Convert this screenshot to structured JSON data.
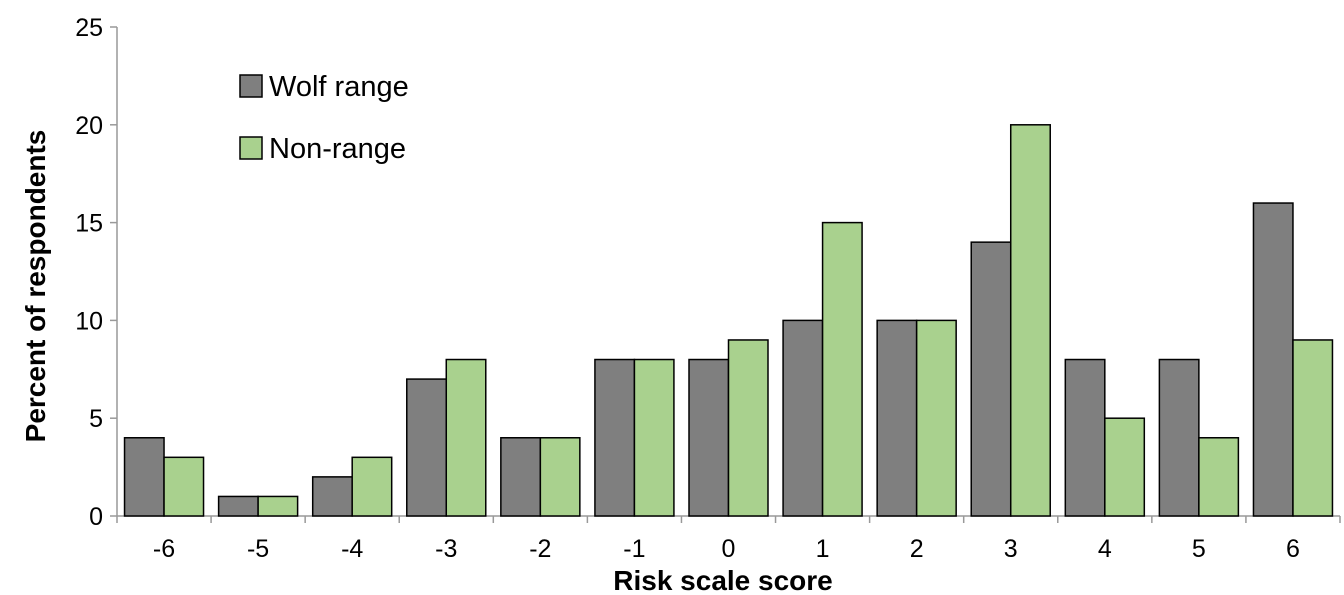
{
  "chart_data": {
    "type": "bar",
    "title": "",
    "xlabel": "Risk scale score",
    "ylabel": "Percent of respondents",
    "categories": [
      "-6",
      "-5",
      "-4",
      "-3",
      "-2",
      "-1",
      "0",
      "1",
      "2",
      "3",
      "4",
      "5",
      "6"
    ],
    "series": [
      {
        "name": "Wolf range",
        "color": "#7f7f7f",
        "values": [
          4,
          1,
          2,
          7,
          4,
          8,
          8,
          10,
          10,
          14,
          8,
          8,
          16
        ]
      },
      {
        "name": "Non-range",
        "color": "#a9d18e",
        "values": [
          3,
          1,
          3,
          8,
          4,
          8,
          9,
          15,
          10,
          20,
          5,
          4,
          9
        ]
      }
    ],
    "ylim": [
      0,
      25
    ],
    "yticks": [
      0,
      5,
      10,
      15,
      20,
      25
    ],
    "grid": false,
    "legend_position": "top-left"
  }
}
